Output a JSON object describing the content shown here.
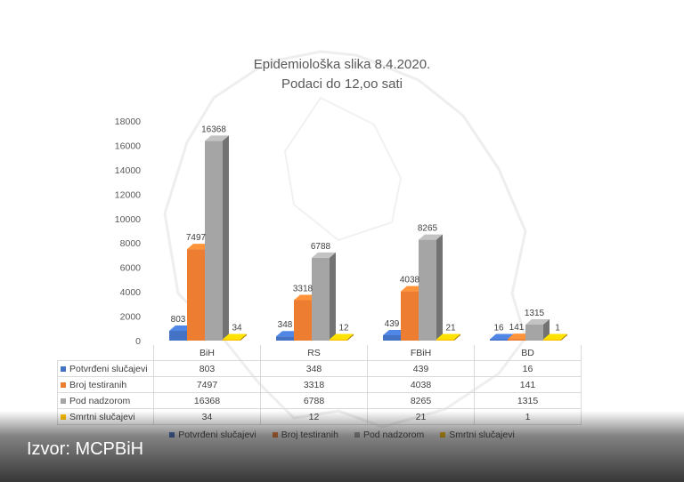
{
  "chart_data": {
    "type": "bar",
    "title": "Epidemiološka slika 8.4.2020.",
    "subtitle": "Podaci do 12,oo sati",
    "categories": [
      "BiH",
      "RS",
      "FBiH",
      "BD"
    ],
    "series": [
      {
        "name": "Potvrđeni slučajevi",
        "color": "#4472c4",
        "values": [
          803,
          348,
          439,
          16
        ]
      },
      {
        "name": "Broj testiranih",
        "color": "#ed7d31",
        "values": [
          7497,
          3318,
          4038,
          141
        ]
      },
      {
        "name": "Pod nadzorom",
        "color": "#a5a5a5",
        "values": [
          16368,
          6788,
          8265,
          1315
        ]
      },
      {
        "name": "Smrtni slučajevi",
        "color": "#ffc000",
        "values": [
          34,
          12,
          21,
          1
        ]
      }
    ],
    "ylim": [
      0,
      18000
    ],
    "yticks": [
      "0",
      "2000",
      "4000",
      "6000",
      "8000",
      "10000",
      "12000",
      "14000",
      "16000",
      "18000"
    ],
    "grid": false,
    "legend_position": "bottom",
    "style": "3d-clustered-column-with-data-table"
  },
  "source": "Izvor: MCPBiH"
}
